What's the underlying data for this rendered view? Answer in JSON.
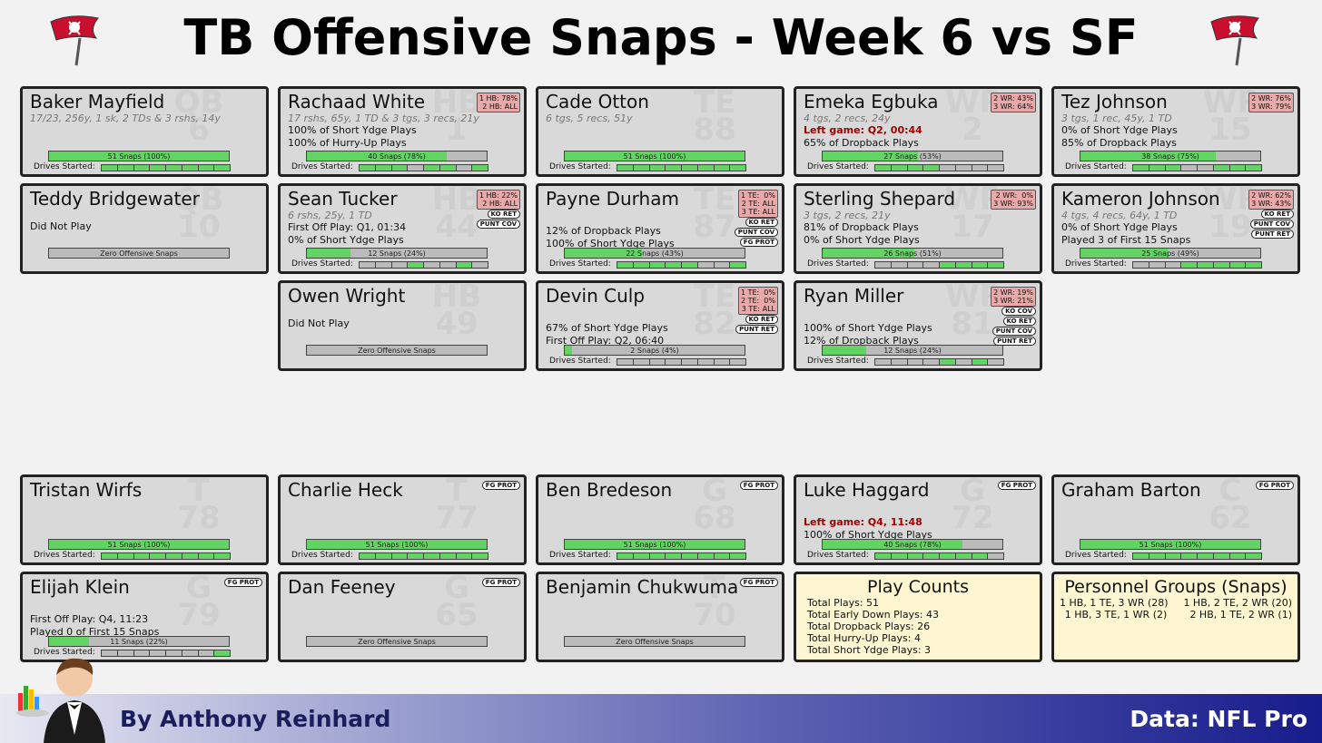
{
  "title": "TB Offensive Snaps - Week 6 vs SF",
  "footer": {
    "byline": "By Anthony Reinhard",
    "credit": "Data: NFL Pro"
  },
  "colors": {
    "fill": "#63d363",
    "empty": "#bbbbbb",
    "card": "#d9d9d9",
    "red_box": "#e9a9a9",
    "summary": "#fdf6d0"
  },
  "players": [
    {
      "name": "Baker Mayfield",
      "pos": "QB",
      "num": "6",
      "stat": "17/23, 256y, 1 sk, 2 TDs & 3 rshs, 14y",
      "lines": [],
      "bar": "51 Snaps (100%)",
      "pct": 1.0,
      "drives": [
        1,
        1,
        1,
        1,
        1,
        1,
        1,
        1
      ]
    },
    {
      "name": "Rachaad White",
      "pos": "HB",
      "num": "1",
      "stat": "17 rshs, 65y, 1 TD & 3 tgs, 3 recs, 21y",
      "lines": [
        "100% of Short Ydge Plays",
        "100% of Hurry-Up Plays"
      ],
      "bar": "40 Snaps (78%)",
      "pct": 0.78,
      "drives": [
        1,
        1,
        1,
        0,
        1,
        1,
        0,
        1
      ],
      "box": "1 HB: 78%\n2 HB: ALL"
    },
    {
      "name": "Cade Otton",
      "pos": "TE",
      "num": "88",
      "stat": "6 tgs, 5 recs, 51y",
      "lines": [],
      "bar": "51 Snaps (100%)",
      "pct": 1.0,
      "drives": [
        1,
        1,
        1,
        1,
        1,
        1,
        1,
        1
      ]
    },
    {
      "name": "Emeka Egbuka",
      "pos": "WR",
      "num": "2",
      "stat": "4 tgs, 2 recs, 24y",
      "lines": [
        "Left game: Q2, 00:44",
        "65% of Dropback Plays"
      ],
      "red": 0,
      "bar": "27 Snaps (53%)",
      "pct": 0.53,
      "drives": [
        1,
        1,
        1,
        1,
        0,
        0,
        0,
        0
      ],
      "box": "2 WR: 43%\n3 WR: 64%"
    },
    {
      "name": "Tez Johnson",
      "pos": "WR",
      "num": "15",
      "stat": "3 tgs, 1 rec, 45y, 1 TD",
      "lines": [
        "0% of Short Ydge Plays",
        "85% of Dropback Plays"
      ],
      "bar": "38 Snaps (75%)",
      "pct": 0.75,
      "drives": [
        1,
        1,
        1,
        0,
        0,
        1,
        1,
        1
      ],
      "box": "2 WR: 76%\n3 WR: 79%"
    },
    {
      "name": "Teddy Bridgewater",
      "pos": "QB",
      "num": "10",
      "stat": "",
      "lines": [
        "Did Not Play"
      ],
      "bar": "Zero Offensive Snaps",
      "pct": 0,
      "nodrives": true
    },
    {
      "name": "Sean Tucker",
      "pos": "HB",
      "num": "44",
      "stat": "6 rshs, 25y, 1 TD",
      "lines": [
        "First Off Play: Q1, 01:34",
        "0% of Short Ydge Plays"
      ],
      "bar": "12 Snaps (24%)",
      "pct": 0.24,
      "drives": [
        0,
        0,
        0,
        1,
        0,
        0,
        1,
        0
      ],
      "box": "1 HB: 22%\n2 HB: ALL",
      "tags": [
        "KO RET",
        "PUNT COV"
      ]
    },
    {
      "name": "Payne Durham",
      "pos": "TE",
      "num": "87",
      "stat": "",
      "lines": [
        "12% of Dropback Plays",
        "100% of Short Ydge Plays"
      ],
      "bar": "22 Snaps (43%)",
      "pct": 0.43,
      "drives": [
        1,
        1,
        1,
        1,
        1,
        0,
        0,
        1
      ],
      "box": "1 TE:  0%\n2 TE: ALL\n3 TE: ALL",
      "tags": [
        "KO RET",
        "PUNT COV",
        "FG PROT"
      ]
    },
    {
      "name": "Sterling Shepard",
      "pos": "WR",
      "num": "17",
      "stat": "3 tgs, 2 recs, 21y",
      "lines": [
        "81% of Dropback Plays",
        "0% of Short Ydge Plays"
      ],
      "bar": "26 Snaps (51%)",
      "pct": 0.51,
      "drives": [
        0,
        0,
        0,
        0,
        1,
        1,
        1,
        1
      ],
      "box": "2 WR:  0%\n3 WR: 93%"
    },
    {
      "name": "Kameron Johnson",
      "pos": "WR",
      "num": "19",
      "stat": "4 tgs, 4 recs, 64y, 1 TD",
      "lines": [
        "0% of Short Ydge Plays",
        "Played 3 of First 15 Snaps"
      ],
      "bar": "25 Snaps (49%)",
      "pct": 0.49,
      "drives": [
        0,
        0,
        0,
        1,
        1,
        1,
        1,
        1
      ],
      "box": "2 WR: 62%\n3 WR: 43%",
      "tags": [
        "KO RET",
        "PUNT COV",
        "PUNT RET"
      ]
    },
    {
      "name": "Owen Wright",
      "pos": "HB",
      "num": "49",
      "stat": "",
      "lines": [
        "Did Not Play"
      ],
      "bar": "Zero Offensive Snaps",
      "pct": 0,
      "nodrives": true
    },
    {
      "name": "Devin Culp",
      "pos": "TE",
      "num": "82",
      "stat": "",
      "lines": [
        "67% of Short Ydge Plays",
        "First Off Play: Q2, 06:40"
      ],
      "bar": "2 Snaps (4%)",
      "pct": 0.04,
      "drives": [
        0,
        0,
        0,
        0,
        0,
        0,
        0,
        0
      ],
      "box": "1 TE:  0%\n2 TE:  0%\n3 TE: ALL",
      "tags": [
        "KO RET",
        "PUNT RET"
      ]
    },
    {
      "name": "Ryan Miller",
      "pos": "WR",
      "num": "81",
      "stat": "",
      "lines": [
        "100% of Short Ydge Plays",
        "12% of Dropback Plays"
      ],
      "bar": "12 Snaps (24%)",
      "pct": 0.24,
      "drives": [
        0,
        0,
        0,
        0,
        1,
        0,
        1,
        0
      ],
      "box": "2 WR: 19%\n3 WR: 21%",
      "tags": [
        "KO COV",
        "KO RET",
        "PUNT COV",
        "PUNT RET"
      ]
    },
    {
      "name": "Tristan Wirfs",
      "pos": "T",
      "num": "78",
      "stat": "",
      "lines": [],
      "bar": "51 Snaps (100%)",
      "pct": 1.0,
      "drives": [
        1,
        1,
        1,
        1,
        1,
        1,
        1,
        1
      ]
    },
    {
      "name": "Charlie Heck",
      "pos": "T",
      "num": "77",
      "stat": "",
      "lines": [],
      "bar": "51 Snaps (100%)",
      "pct": 1.0,
      "drives": [
        1,
        1,
        1,
        1,
        1,
        1,
        1,
        1
      ],
      "tags": [
        "FG PROT"
      ]
    },
    {
      "name": "Ben Bredeson",
      "pos": "G",
      "num": "68",
      "stat": "",
      "lines": [],
      "bar": "51 Snaps (100%)",
      "pct": 1.0,
      "drives": [
        1,
        1,
        1,
        1,
        1,
        1,
        1,
        1
      ],
      "tags": [
        "FG PROT"
      ]
    },
    {
      "name": "Luke Haggard",
      "pos": "G",
      "num": "72",
      "stat": "",
      "lines": [
        "Left game: Q4, 11:48",
        "100% of Short Ydge Plays"
      ],
      "red": 0,
      "bar": "40 Snaps (78%)",
      "pct": 0.78,
      "drives": [
        1,
        1,
        1,
        1,
        1,
        1,
        1,
        0
      ],
      "tags": [
        "FG PROT"
      ]
    },
    {
      "name": "Graham Barton",
      "pos": "C",
      "num": "62",
      "stat": "",
      "lines": [],
      "bar": "51 Snaps (100%)",
      "pct": 1.0,
      "drives": [
        1,
        1,
        1,
        1,
        1,
        1,
        1,
        1
      ],
      "tags": [
        "FG PROT"
      ]
    },
    {
      "name": "Elijah Klein",
      "pos": "G",
      "num": "79",
      "stat": "",
      "lines": [
        "First Off Play: Q4, 11:23",
        "Played 0 of First 15 Snaps"
      ],
      "bar": "11 Snaps (22%)",
      "pct": 0.22,
      "drives": [
        0,
        0,
        0,
        0,
        0,
        0,
        0,
        1
      ],
      "tags": [
        "FG PROT"
      ]
    },
    {
      "name": "Dan Feeney",
      "pos": "G",
      "num": "65",
      "stat": "",
      "lines": [],
      "bar": "Zero Offensive Snaps",
      "pct": 0,
      "nodrives": true,
      "tags": [
        "FG PROT"
      ]
    },
    {
      "name": "Benjamin Chukwuma",
      "pos": "T",
      "num": "70",
      "stat": "",
      "lines": [],
      "bar": "Zero Offensive Snaps",
      "pct": 0,
      "nodrives": true,
      "tags": [
        "FG PROT"
      ]
    }
  ],
  "drives_label": "Drives Started:",
  "play_counts": {
    "title": "Play Counts",
    "lines": [
      "Total Plays: 51",
      "Total Early Down Plays: 43",
      "Total Dropback Plays: 26",
      "Total Hurry-Up Plays: 4",
      "Total Short Ydge Plays: 3"
    ]
  },
  "personnel": {
    "title": "Personnel Groups (Snaps)",
    "items": [
      "1 HB, 1 TE, 3 WR (28)",
      "1 HB, 2 TE, 2 WR (20)",
      "1 HB, 3 TE, 1 WR (2)",
      "2 HB, 1 TE, 2 WR (1)"
    ]
  }
}
